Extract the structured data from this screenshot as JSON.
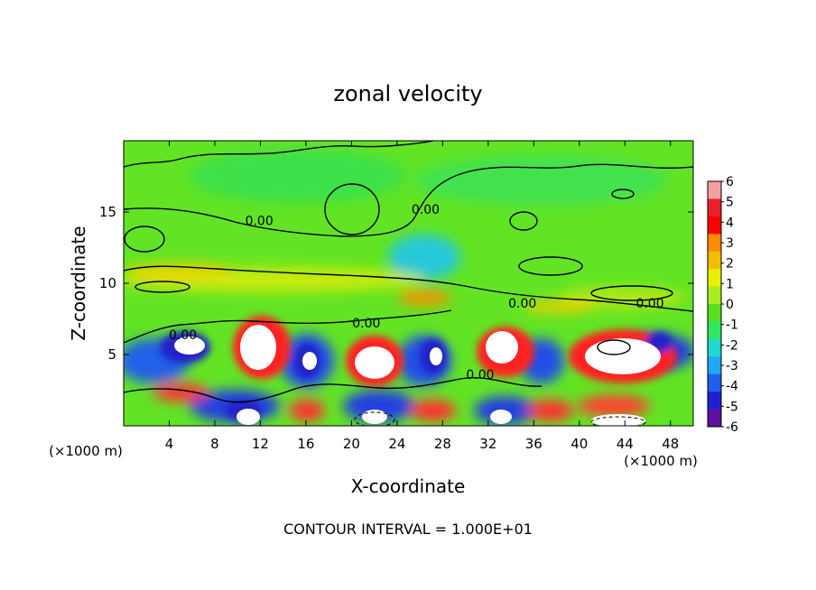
{
  "chart_data": {
    "type": "heatmap",
    "title": "zonal velocity",
    "xlabel": "X-coordinate",
    "ylabel": "Z-coordinate",
    "x_unit_label": "(×1000 m)",
    "x_unit_label_right": "(×1000 m)",
    "xlim": [
      0,
      50
    ],
    "ylim": [
      0,
      20
    ],
    "x_ticks": [
      4,
      8,
      12,
      16,
      20,
      24,
      28,
      32,
      36,
      40,
      44,
      48
    ],
    "y_ticks": [
      5,
      10,
      15
    ],
    "colorbar": {
      "min": -6,
      "max": 6,
      "ticks": [
        6,
        5,
        4,
        3,
        2,
        1,
        0,
        -1,
        -2,
        -3,
        -4,
        -5,
        -6
      ],
      "colors": [
        "#f4a0a0",
        "#e8202a",
        "#ff0000",
        "#ff8c00",
        "#f0c000",
        "#e8f000",
        "#a8ee20",
        "#58e020",
        "#30e860",
        "#20d8d0",
        "#20a8f0",
        "#2060e8",
        "#2020d0",
        "#6010a0"
      ]
    },
    "contour_labels": [
      {
        "text": "0.00",
        "x": 11.9,
        "z": 14.4
      },
      {
        "text": "0.00",
        "x": 26.5,
        "z": 15.2
      },
      {
        "text": "0.00",
        "x": 5.2,
        "z": 6.4
      },
      {
        "text": "0.00",
        "x": 21.3,
        "z": 7.2
      },
      {
        "text": "0.00",
        "x": 35.0,
        "z": 8.6
      },
      {
        "text": "0.00",
        "x": 46.2,
        "z": 8.6
      },
      {
        "text": "0.00",
        "x": 31.3,
        "z": 3.6
      }
    ],
    "note": "CONTOUR INTERVAL = 1.000E+01"
  }
}
